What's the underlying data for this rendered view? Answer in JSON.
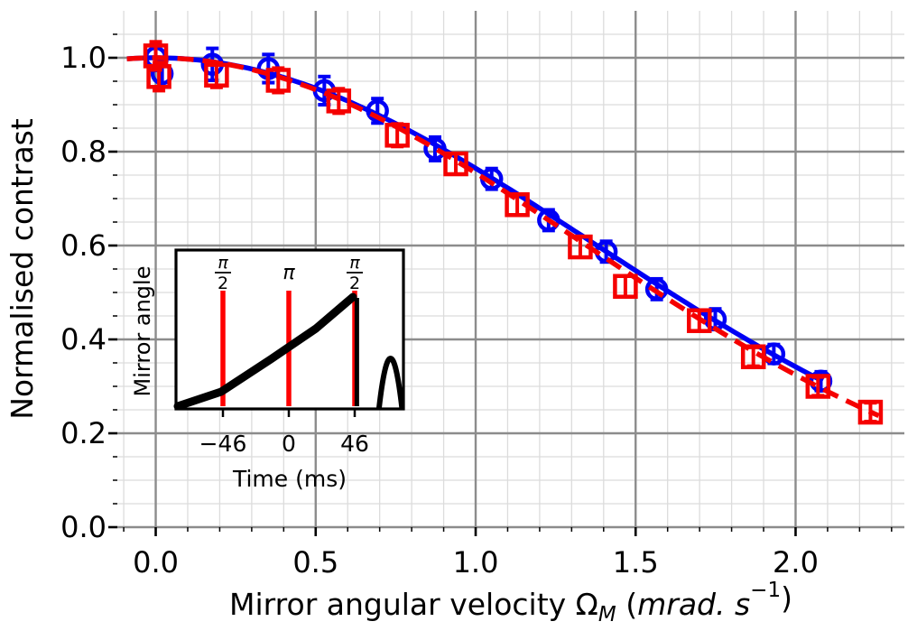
{
  "figure": {
    "background": "#ffffff"
  },
  "chart_data": {
    "type": "line",
    "title": "",
    "ylabel": "Normalised contrast",
    "xlabel_parts": [
      {
        "t": "Mirror angular velocity Ω",
        "style": "normal"
      },
      {
        "t": "M",
        "style": "sub"
      },
      {
        "t": " (",
        "style": "normal"
      },
      {
        "t": "mrad. s",
        "style": "italic"
      },
      {
        "t": "−1",
        "style": "sup"
      },
      {
        "t": ")",
        "style": "normal"
      }
    ],
    "xlim": [
      -0.12,
      2.34
    ],
    "ylim": [
      0,
      1.1
    ],
    "xticks": {
      "values": [
        0.0,
        0.5,
        1.0,
        1.5,
        2.0
      ],
      "labels": [
        "0.0",
        "0.5",
        "1.0",
        "1.5",
        "2.0"
      ]
    },
    "yticks": {
      "values": [
        0.0,
        0.2,
        0.4,
        0.6,
        0.8,
        1.0
      ],
      "labels": [
        "0.0",
        "0.2",
        "0.4",
        "0.6",
        "0.8",
        "1.0"
      ]
    },
    "minor": {
      "x_step": 0.1,
      "y_step": 0.05
    },
    "grid": {
      "major_color": "#8c8c8c",
      "minor_color": "#dcdcdc",
      "major_width": 2.4,
      "minor_width": 1.3
    },
    "series": [
      {
        "name": "blue-circles",
        "marker": "circle",
        "color": "#0000f5",
        "linestyle": "solid",
        "fit": {
          "shape": "gaussian",
          "sigma": 1.93,
          "range": [
            -0.09,
            2.105
          ]
        },
        "points": [
          {
            "x": 0.0,
            "y": 1.001,
            "e": 0.028
          },
          {
            "x": 0.02,
            "y": 0.966,
            "e": 0.028
          },
          {
            "x": 0.177,
            "y": 0.986,
            "e": 0.034
          },
          {
            "x": 0.352,
            "y": 0.977,
            "e": 0.03
          },
          {
            "x": 0.527,
            "y": 0.93,
            "e": 0.03
          },
          {
            "x": 0.693,
            "y": 0.887,
            "e": 0.026
          },
          {
            "x": 0.873,
            "y": 0.806,
            "e": 0.025
          },
          {
            "x": 1.05,
            "y": 0.742,
            "e": 0.022
          },
          {
            "x": 1.228,
            "y": 0.654,
            "e": 0.022
          },
          {
            "x": 1.408,
            "y": 0.587,
            "e": 0.022
          },
          {
            "x": 1.566,
            "y": 0.507,
            "e": 0.022
          },
          {
            "x": 1.749,
            "y": 0.443,
            "e": 0.022
          },
          {
            "x": 1.932,
            "y": 0.369,
            "e": 0.02
          },
          {
            "x": 2.079,
            "y": 0.311,
            "e": 0.02
          }
        ]
      },
      {
        "name": "red-squares",
        "marker": "square",
        "color": "#f50000",
        "linestyle": "dashed",
        "fit": {
          "shape": "gaussian",
          "sigma": 1.885,
          "range": [
            -0.09,
            2.27
          ]
        },
        "points": [
          {
            "x": 0.0,
            "y": 1.004,
            "e": 0.03
          },
          {
            "x": 0.01,
            "y": 0.96,
            "e": 0.03
          },
          {
            "x": 0.19,
            "y": 0.963,
            "e": 0.026
          },
          {
            "x": 0.383,
            "y": 0.952,
            "e": 0.026
          },
          {
            "x": 0.572,
            "y": 0.908,
            "e": 0.026
          },
          {
            "x": 0.755,
            "y": 0.835,
            "e": 0.024
          },
          {
            "x": 0.938,
            "y": 0.774,
            "e": 0.022
          },
          {
            "x": 1.13,
            "y": 0.687,
            "e": 0.022
          },
          {
            "x": 1.327,
            "y": 0.597,
            "e": 0.022
          },
          {
            "x": 1.468,
            "y": 0.513,
            "e": 0.022
          },
          {
            "x": 1.699,
            "y": 0.44,
            "e": 0.022
          },
          {
            "x": 1.868,
            "y": 0.363,
            "e": 0.02
          },
          {
            "x": 2.07,
            "y": 0.3,
            "e": 0.02
          },
          {
            "x": 2.234,
            "y": 0.245,
            "e": 0.02
          }
        ]
      }
    ],
    "inset": {
      "xlabel": "Time (ms)",
      "ylabel": "Mirror angle",
      "xticks": {
        "values": [
          -46,
          0,
          46
        ],
        "labels": [
          "−46",
          "0",
          "46"
        ]
      },
      "pulses": [
        {
          "time": -46,
          "label": "π/2"
        },
        {
          "time": 0,
          "label": "π"
        },
        {
          "time": 46,
          "label": "π/2"
        }
      ],
      "pulse_color": "#ff0000",
      "trace_color": "#000000",
      "ramp": {
        "t_start": -77.5,
        "t_end": 45.5,
        "drop_t": 47.5
      },
      "echo": {
        "t_center": 71,
        "t_halfwidth": 8
      }
    }
  }
}
